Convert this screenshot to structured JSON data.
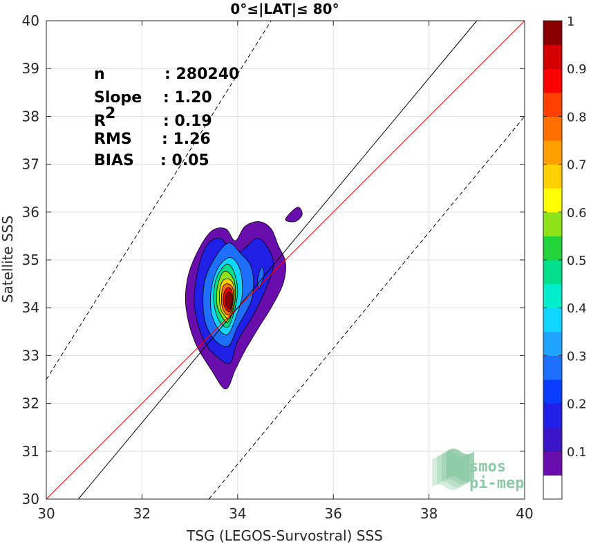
{
  "chart_data": {
    "type": "contour",
    "title": "0°≤|LAT|≤ 80°",
    "xlabel": "TSG (LEGOS-Survostral) SSS",
    "ylabel": "Satellite SSS",
    "xlim": [
      30,
      40
    ],
    "ylim": [
      30,
      40
    ],
    "xticks": [
      "30",
      "32",
      "34",
      "36",
      "38",
      "40"
    ],
    "yticks": [
      "30",
      "31",
      "32",
      "33",
      "34",
      "35",
      "36",
      "37",
      "38",
      "39",
      "40"
    ],
    "grid": true,
    "stats": {
      "n_label": "n",
      "n_value": ": 280240",
      "slope_label": "Slope",
      "slope_value": ": 1.20",
      "r2_label": "R",
      "r2_sup": "2",
      "r2_value": ": 0.19",
      "rms_label": "RMS",
      "rms_value": ": 1.26",
      "bias_label": "BIAS",
      "bias_value": ": 0.05"
    },
    "lines": [
      {
        "name": "one-to-one",
        "color": "#ff0000",
        "points": [
          [
            30,
            30
          ],
          [
            40,
            40
          ]
        ]
      },
      {
        "name": "regression",
        "color": "#000000",
        "dashed": false,
        "points": [
          [
            30.67,
            30
          ],
          [
            39,
            40
          ]
        ]
      },
      {
        "name": "upper-bound",
        "color": "#000000",
        "dashed": true,
        "points": [
          [
            30,
            32.5
          ],
          [
            34.7,
            40
          ]
        ]
      },
      {
        "name": "lower-bound",
        "color": "#000000",
        "dashed": true,
        "points": [
          [
            33.4,
            30
          ],
          [
            40,
            38
          ]
        ]
      }
    ],
    "density_contours": [
      {
        "level": 0.05,
        "points": [
          [
            33.75,
            32.3
          ],
          [
            33.95,
            32.7
          ],
          [
            34.15,
            33.1
          ],
          [
            34.45,
            33.6
          ],
          [
            34.7,
            34.0
          ],
          [
            34.95,
            34.5
          ],
          [
            35.0,
            34.95
          ],
          [
            34.85,
            35.3
          ],
          [
            34.7,
            35.65
          ],
          [
            34.45,
            35.8
          ],
          [
            34.15,
            35.7
          ],
          [
            33.95,
            35.4
          ],
          [
            33.75,
            35.65
          ],
          [
            33.45,
            35.6
          ],
          [
            33.15,
            35.15
          ],
          [
            32.95,
            34.6
          ],
          [
            32.92,
            34.0
          ],
          [
            33.1,
            33.3
          ],
          [
            33.45,
            32.7
          ]
        ]
      },
      {
        "level": 0.05,
        "points": [
          [
            35.0,
            35.85
          ],
          [
            35.25,
            36.1
          ],
          [
            35.35,
            35.95
          ],
          [
            35.2,
            35.8
          ]
        ]
      },
      {
        "level": 0.15,
        "points": [
          [
            33.85,
            32.85
          ],
          [
            34.0,
            33.3
          ],
          [
            34.3,
            33.8
          ],
          [
            34.55,
            34.3
          ],
          [
            34.75,
            34.9
          ],
          [
            34.6,
            35.3
          ],
          [
            34.4,
            35.45
          ],
          [
            34.15,
            35.25
          ],
          [
            33.9,
            35.1
          ],
          [
            33.65,
            35.45
          ],
          [
            33.35,
            35.3
          ],
          [
            33.15,
            34.7
          ],
          [
            33.1,
            34.0
          ],
          [
            33.3,
            33.3
          ],
          [
            33.6,
            32.95
          ]
        ]
      },
      {
        "level": 0.25,
        "points": [
          [
            33.8,
            33.2
          ],
          [
            34.0,
            33.6
          ],
          [
            34.3,
            34.2
          ],
          [
            34.3,
            34.8
          ],
          [
            34.05,
            35.15
          ],
          [
            33.8,
            35.35
          ],
          [
            33.5,
            35.0
          ],
          [
            33.3,
            34.5
          ],
          [
            33.3,
            33.8
          ],
          [
            33.5,
            33.35
          ]
        ]
      },
      {
        "level": 0.35,
        "points": [
          [
            33.8,
            33.45
          ],
          [
            33.98,
            33.85
          ],
          [
            34.1,
            34.3
          ],
          [
            34.05,
            34.8
          ],
          [
            33.85,
            35.05
          ],
          [
            33.6,
            34.85
          ],
          [
            33.45,
            34.4
          ],
          [
            33.45,
            33.9
          ],
          [
            33.6,
            33.55
          ]
        ]
      },
      {
        "level": 0.45,
        "points": [
          [
            33.8,
            33.6
          ],
          [
            33.95,
            34.0
          ],
          [
            34.0,
            34.4
          ],
          [
            33.9,
            34.8
          ],
          [
            33.75,
            34.9
          ],
          [
            33.55,
            34.6
          ],
          [
            33.5,
            34.15
          ],
          [
            33.6,
            33.75
          ]
        ]
      },
      {
        "level": 0.55,
        "points": [
          [
            33.8,
            33.7
          ],
          [
            33.93,
            34.05
          ],
          [
            33.95,
            34.45
          ],
          [
            33.85,
            34.7
          ],
          [
            33.7,
            34.75
          ],
          [
            33.58,
            34.45
          ],
          [
            33.57,
            34.05
          ],
          [
            33.68,
            33.8
          ]
        ]
      },
      {
        "level": 0.65,
        "points": [
          [
            33.82,
            33.78
          ],
          [
            33.92,
            34.1
          ],
          [
            33.92,
            34.45
          ],
          [
            33.82,
            34.6
          ],
          [
            33.68,
            34.55
          ],
          [
            33.62,
            34.3
          ],
          [
            33.64,
            34.0
          ],
          [
            33.72,
            33.85
          ]
        ]
      },
      {
        "level": 0.75,
        "points": [
          [
            33.82,
            33.85
          ],
          [
            33.9,
            34.1
          ],
          [
            33.9,
            34.4
          ],
          [
            33.8,
            34.5
          ],
          [
            33.7,
            34.45
          ],
          [
            33.66,
            34.2
          ],
          [
            33.7,
            33.95
          ]
        ]
      },
      {
        "level": 0.85,
        "points": [
          [
            33.83,
            33.92
          ],
          [
            33.89,
            34.1
          ],
          [
            33.88,
            34.35
          ],
          [
            33.8,
            34.42
          ],
          [
            33.72,
            34.32
          ],
          [
            33.7,
            34.12
          ],
          [
            33.75,
            33.98
          ]
        ]
      },
      {
        "level": 0.95,
        "points": [
          [
            33.84,
            33.98
          ],
          [
            33.88,
            34.15
          ],
          [
            33.86,
            34.3
          ],
          [
            33.79,
            34.33
          ],
          [
            33.74,
            34.2
          ],
          [
            33.76,
            34.05
          ]
        ]
      },
      {
        "level": 0.25,
        "points": [
          [
            34.45,
            34.4
          ],
          [
            34.55,
            34.7
          ],
          [
            34.5,
            34.85
          ],
          [
            34.42,
            34.6
          ]
        ]
      }
    ],
    "colorbar": {
      "ticks": [
        "0.1",
        "0.2",
        "0.3",
        "0.4",
        "0.5",
        "0.6",
        "0.7",
        "0.8",
        "0.9",
        "1"
      ],
      "tick_values": [
        0.1,
        0.2,
        0.3,
        0.4,
        0.5,
        0.6,
        0.7,
        0.8,
        0.9,
        1.0
      ],
      "colors": [
        "#ffffff",
        "#6a0dad",
        "#3b16c8",
        "#1f1fe6",
        "#0a3cff",
        "#1f6fff",
        "#1fa3ff",
        "#10d6ff",
        "#00eecc",
        "#00e08a",
        "#22d43a",
        "#8fe11a",
        "#ffff00",
        "#ffd000",
        "#ffa000",
        "#ff7000",
        "#ff4000",
        "#ff0000",
        "#d40000",
        "#8a0000"
      ]
    }
  },
  "logo": {
    "line1": "smos",
    "line2": "pi-mep"
  }
}
